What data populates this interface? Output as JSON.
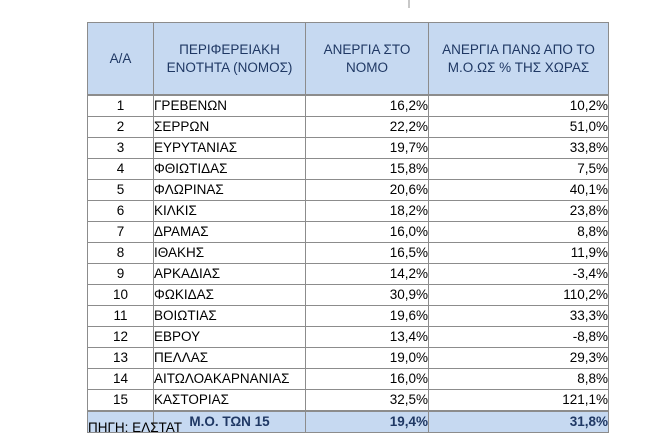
{
  "table": {
    "headers": [
      "Α/Α",
      "ΠΕΡΙΦΕΡΕΙΑΚΗ ΕΝΟΤΗΤΑ (ΝΟΜΟΣ)",
      "ΑΝΕΡΓΙΑ ΣΤΟ ΝΟΜΟ",
      "ΑΝΕΡΓΙΑ ΠΑΝΩ ΑΠΟ ΤΟ Μ.Ο.ΩΣ % ΤΗΣ ΧΩΡΑΣ"
    ],
    "rows": [
      [
        "1",
        "ΓΡΕΒΕΝΩΝ",
        "16,2%",
        "10,2%"
      ],
      [
        "2",
        "ΣΕΡΡΩΝ",
        "22,2%",
        "51,0%"
      ],
      [
        "3",
        "ΕΥΡΥΤΑΝΙΑΣ",
        "19,7%",
        "33,8%"
      ],
      [
        "4",
        "ΦΘΙΩΤΙΔΑΣ",
        "15,8%",
        "7,5%"
      ],
      [
        "5",
        "ΦΛΩΡΙΝΑΣ",
        "20,6%",
        "40,1%"
      ],
      [
        "6",
        "ΚΙΛΚΙΣ",
        "18,2%",
        "23,8%"
      ],
      [
        "7",
        "ΔΡΑΜΑΣ",
        "16,0%",
        "8,8%"
      ],
      [
        "8",
        "ΙΘΑΚΗΣ",
        "16,5%",
        "11,9%"
      ],
      [
        "9",
        "ΑΡΚΑΔΙΑΣ",
        "14,2%",
        "-3,4%"
      ],
      [
        "10",
        "ΦΩΚΙΔΑΣ",
        "30,9%",
        "110,2%"
      ],
      [
        "11",
        "ΒΟΙΩΤΙΑΣ",
        "19,6%",
        "33,3%"
      ],
      [
        "12",
        "ΕΒΡΟΥ",
        "13,4%",
        "-8,8%"
      ],
      [
        "13",
        "ΠΕΛΛΑΣ",
        "19,0%",
        "29,3%"
      ],
      [
        "14",
        "ΑΙΤΩΛΟΑΚΑΡΝΑΝΙΑΣ",
        "16,0%",
        "8,8%"
      ],
      [
        "15",
        "ΚΑΣΤΟΡΙΑΣ",
        "32,5%",
        "121,1%"
      ]
    ],
    "total": {
      "label": "Μ.Ο. ΤΩΝ 15",
      "unemployment": "19,4%",
      "above_avg": "31,8%"
    }
  },
  "source": "ΠΗΓΗ: ΕΛΣΤΑΤ",
  "colors": {
    "header_bg": "#c6d9f1",
    "header_text": "#1f3864",
    "border": "#8c8c8c"
  }
}
